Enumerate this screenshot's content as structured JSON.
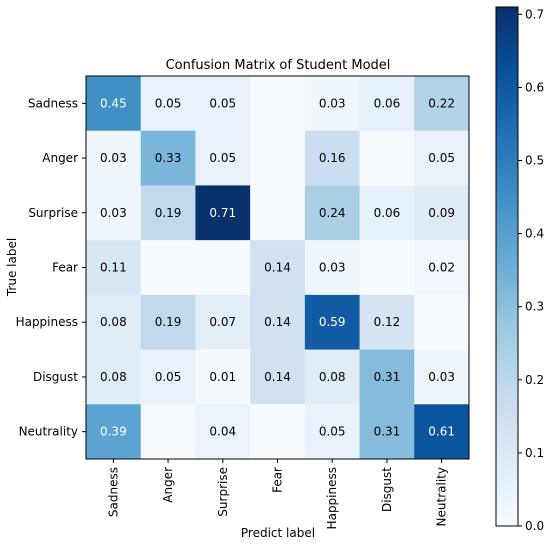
{
  "chart_data": {
    "type": "heatmap",
    "title": "Confusion Matrix of Student Model",
    "xlabel": "Predict label",
    "ylabel": "True label",
    "x_categories": [
      "Sadness",
      "Anger",
      "Surprise",
      "Fear",
      "Happiness",
      "Disgust",
      "Neutrality"
    ],
    "y_categories": [
      "Sadness",
      "Anger",
      "Surprise",
      "Fear",
      "Happiness",
      "Disgust",
      "Neutrality"
    ],
    "values": [
      [
        0.45,
        0.05,
        0.05,
        null,
        0.03,
        0.06,
        0.22
      ],
      [
        0.03,
        0.33,
        0.05,
        null,
        0.16,
        null,
        0.05
      ],
      [
        0.03,
        0.19,
        0.71,
        null,
        0.24,
        0.06,
        0.09
      ],
      [
        0.11,
        null,
        null,
        0.14,
        0.03,
        null,
        0.02
      ],
      [
        0.08,
        0.19,
        0.07,
        0.14,
        0.59,
        0.12,
        null
      ],
      [
        0.08,
        0.05,
        0.01,
        0.14,
        0.08,
        0.31,
        0.03
      ],
      [
        0.39,
        null,
        0.04,
        null,
        0.05,
        0.31,
        0.61
      ]
    ],
    "colorbar": {
      "colormap": "Blues",
      "min": 0.0,
      "max": 0.71,
      "ticks": [
        0.0,
        0.1,
        0.2,
        0.3,
        0.4,
        0.5,
        0.6,
        0.7
      ],
      "tick_labels": [
        "0.0",
        "0.1",
        "0.2",
        "0.3",
        "0.4",
        "0.5",
        "0.6",
        "0.7"
      ]
    }
  }
}
